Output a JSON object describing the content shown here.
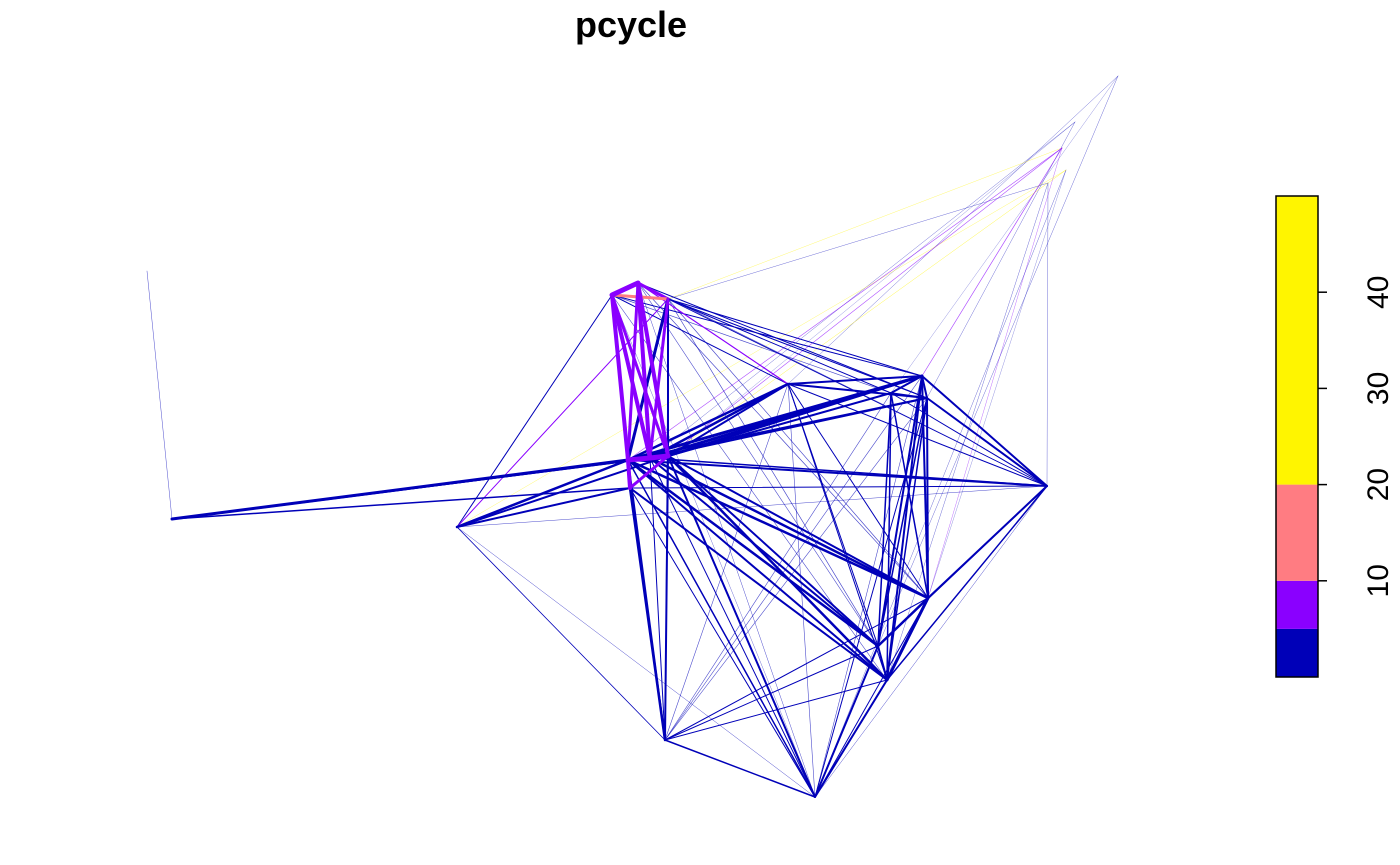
{
  "chart_data": {
    "type": "network",
    "title": "pcycle",
    "legend": {
      "position": "right",
      "breaks": [
        0,
        5,
        10,
        20,
        50
      ],
      "colors": [
        "#0000B8",
        "#8A00FF",
        "#FF7C82",
        "#FFF500"
      ],
      "ticks": [
        10,
        20,
        30,
        40
      ]
    },
    "flow_classes": [
      {
        "range": "0-5",
        "color": "#0000B8"
      },
      {
        "range": "5-10",
        "color": "#8A00FF"
      },
      {
        "range": "10-20",
        "color": "#FF7C82"
      },
      {
        "range": "20-50",
        "color": "#FFF500"
      }
    ]
  }
}
